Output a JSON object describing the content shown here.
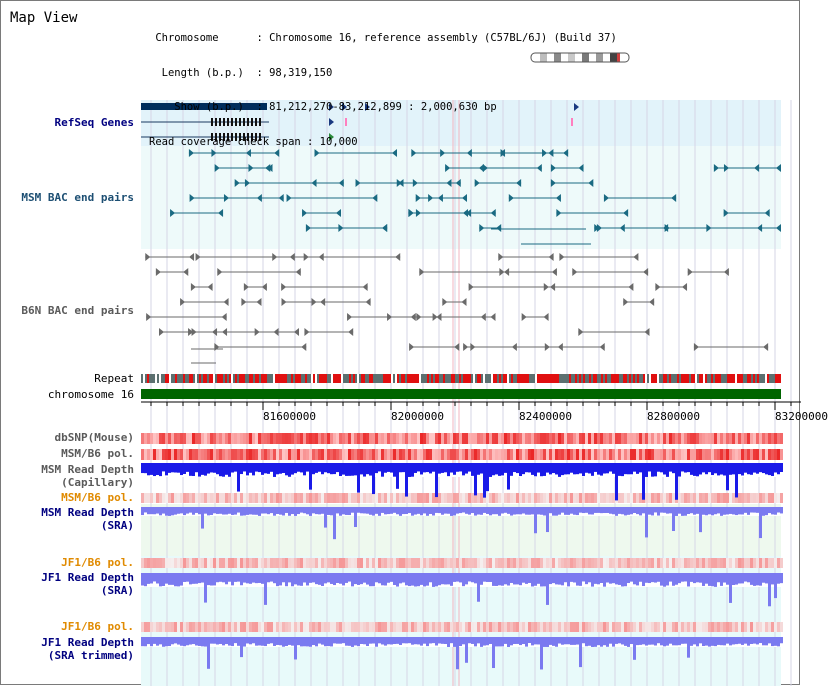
{
  "header": {
    "title": "Map View",
    "info_rows": [
      {
        "key": "Chromosome      ",
        "value": "Chromosome 16, reference assembly (C57BL/6J) (Build 37)"
      },
      {
        "key": "Length (b.p.)   ",
        "value": "98,319,150"
      },
      {
        "key": "  Show (b.p.)   ",
        "value": "81,212,270-83,212,899 : 2,000,630 bp"
      },
      {
        "key": "Read coverage check span",
        "value": "10,000"
      }
    ],
    "info_texts": [
      " Chromosome      : Chromosome 16, reference assembly (C57BL/6J) (Build 37)",
      "  Length (b.p.)  : 98,319,150",
      "    Show (b.p.)  : 81,212,270-83,212,899 : 2,000,630 bp",
      "Read coverage check span : 10,000"
    ]
  },
  "tracks": {
    "refseq": "RefSeq Genes",
    "msm_bac": "MSM BAC end pairs",
    "b6n_bac": "B6N BAC end pairs",
    "repeat": "Repeat",
    "chromosome": "chromosome 16",
    "dbsnp": "dbSNP(Mouse)",
    "msm_b6_pol_1": "MSM/B6 pol.",
    "msm_read_depth_cap_1": "MSM Read Depth",
    "msm_read_depth_cap_2": "(Capillary)",
    "msm_b6_pol_2": "MSM/B6 pol.",
    "msm_read_depth_sra_1": "MSM Read Depth",
    "msm_read_depth_sra_2": "(SRA)",
    "jf1_b6_pol_1": "JF1/B6 pol.",
    "jf1_read_depth_sra_1": "JF1 Read Depth",
    "jf1_read_depth_sra_2": "(SRA)",
    "jf1_b6_pol_2": "JF1/B6 pol.",
    "jf1_read_depth_trim_1": "JF1 Read Depth",
    "jf1_read_depth_trim_2": "(SRA trimmed)"
  },
  "axis": {
    "ticks": [
      "81600000",
      "82000000",
      "82400000",
      "82800000",
      "83200000"
    ]
  },
  "colors": {
    "gene_dark": "#002e5c",
    "bac_msm": "#1a6a82",
    "bac_b6n": "#6a6a6a",
    "repeat_red": "#e01010",
    "repeat_gray": "#5c7070",
    "chromosome_green": "#006400",
    "snp_red": "#f03030",
    "depth_blue": "#1a1ae8",
    "depth_light_blue": "#7a7af0",
    "orange_label": "#e08a00"
  }
}
